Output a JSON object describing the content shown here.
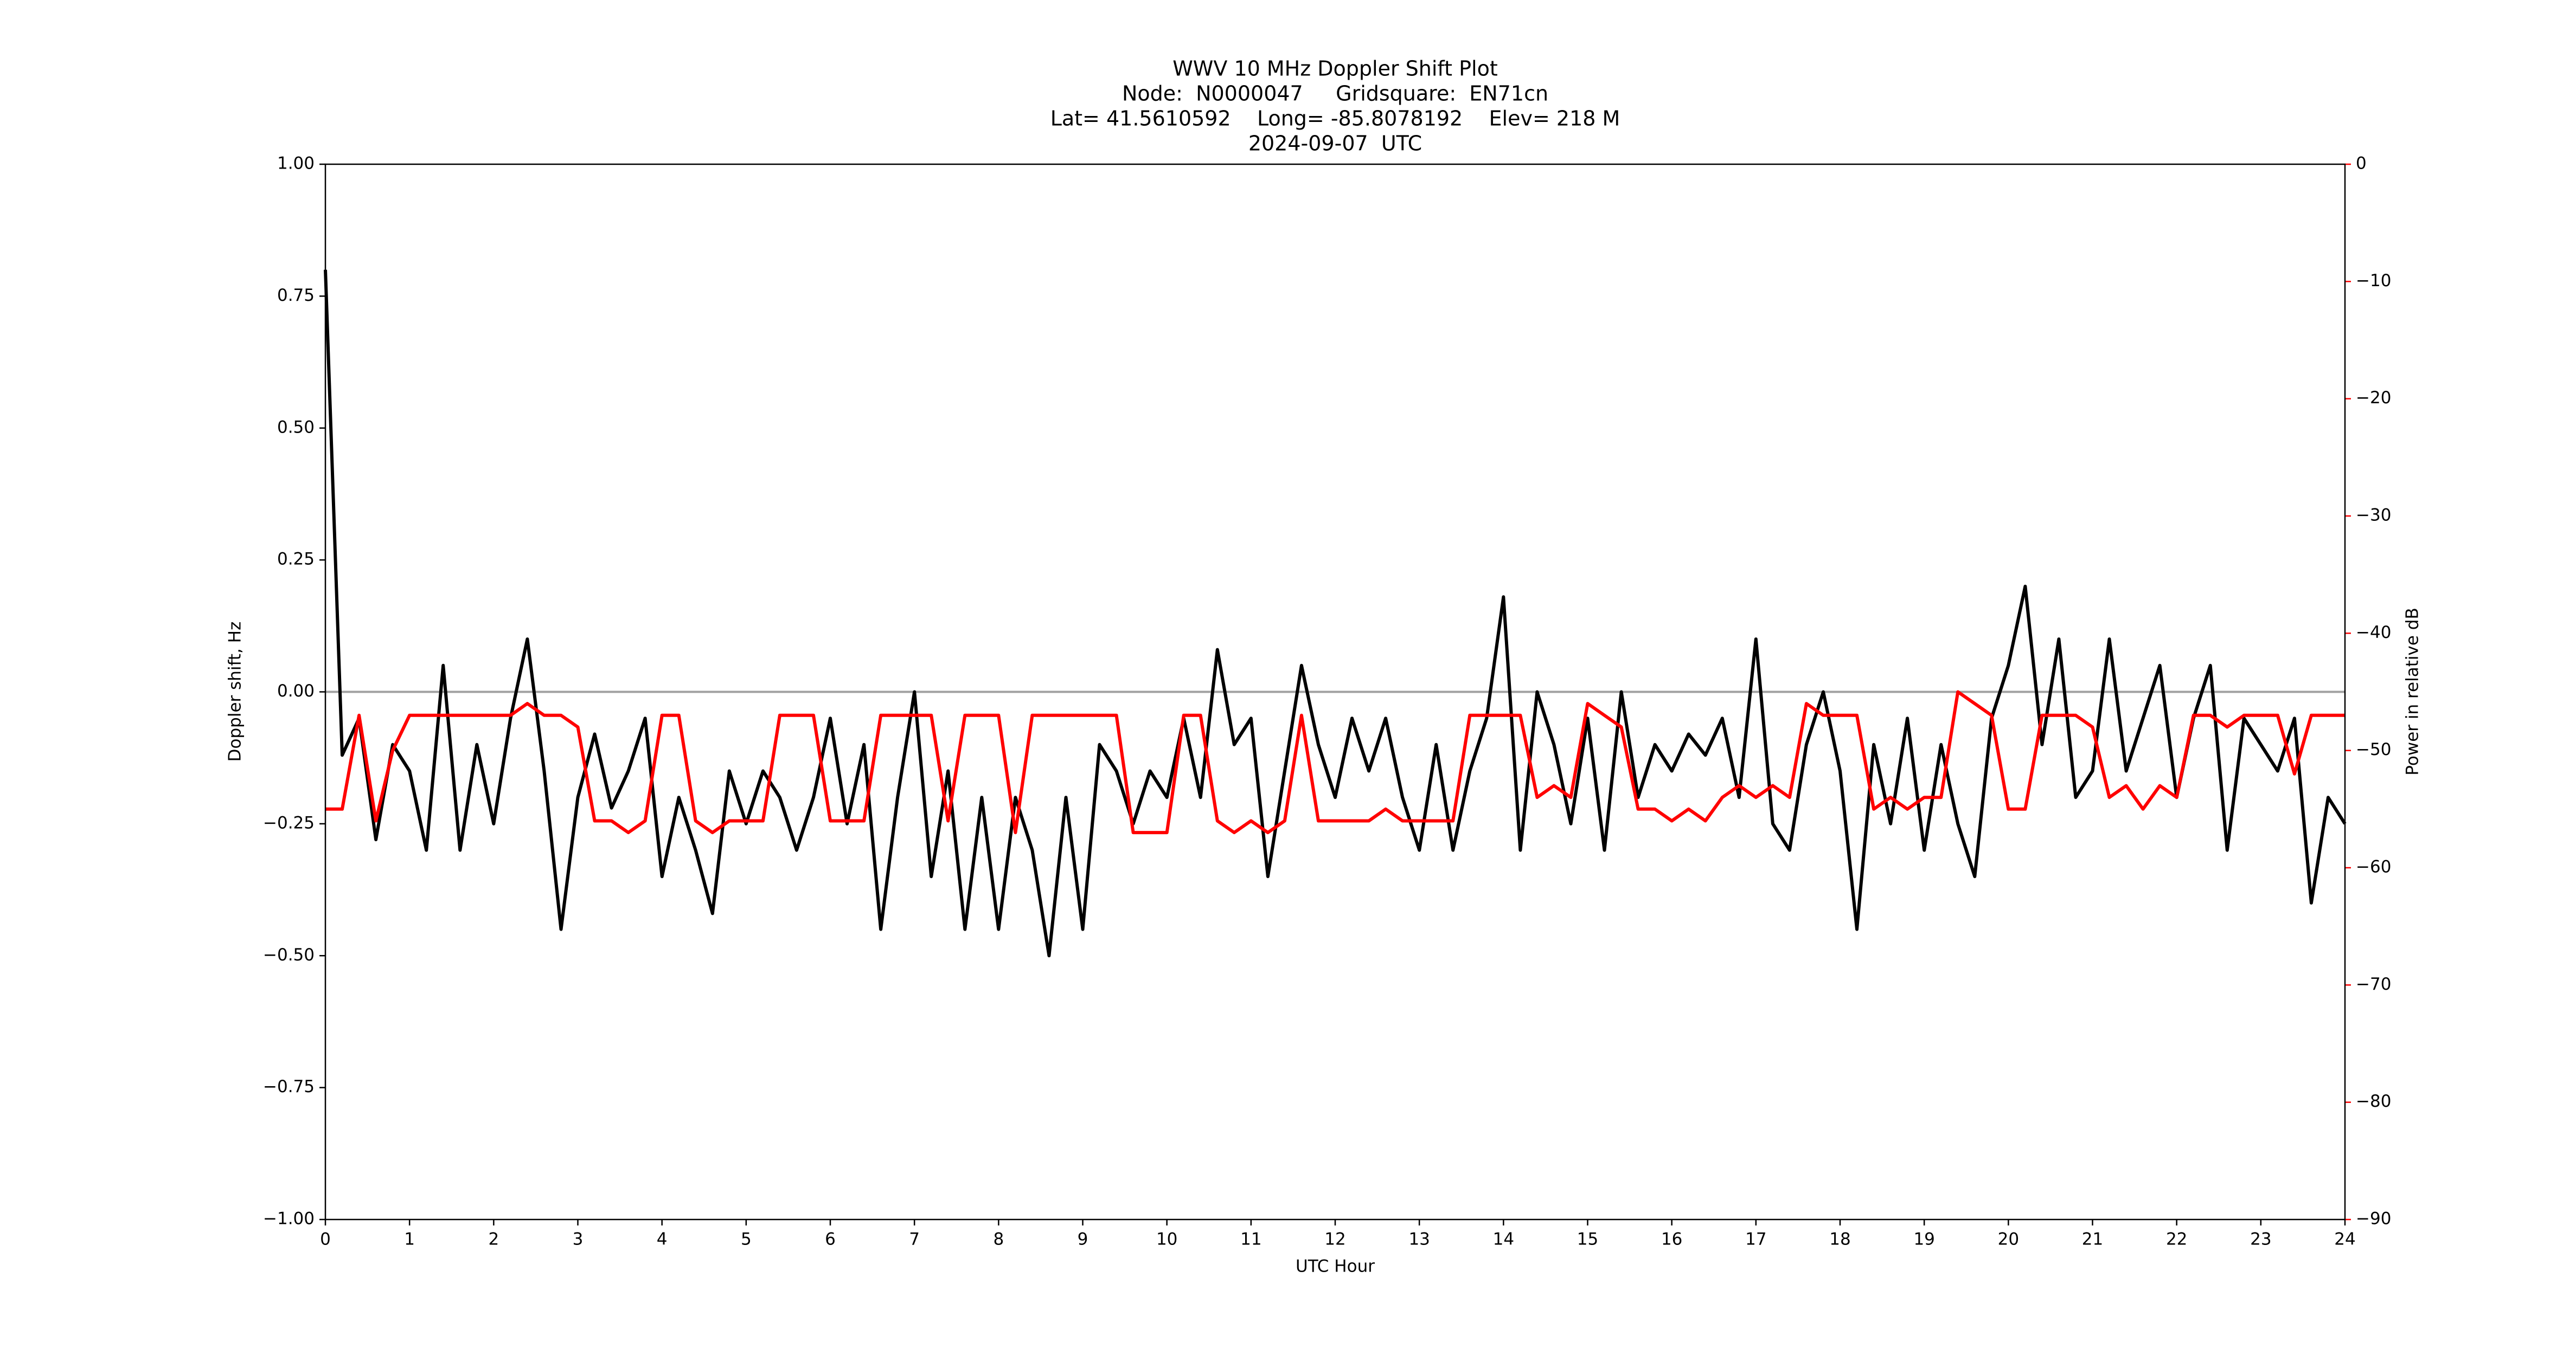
{
  "chart_data": {
    "type": "line",
    "title": "WWV 10 MHz Doppler Shift Plot",
    "subtitle": [
      "Node:  N0000047     Gridsquare:  EN71cn",
      "Lat= 41.5610592    Long= -85.8078192    Elev= 218 M",
      "2024-09-07  UTC"
    ],
    "xlabel": "UTC Hour",
    "ylabel": "Doppler shift, Hz",
    "y2label": "Power in relative dB",
    "x": [
      0,
      0.2,
      0.4,
      0.6,
      0.8,
      1.0,
      1.2,
      1.4,
      1.6,
      1.8,
      2.0,
      2.2,
      2.4,
      2.6,
      2.8,
      3.0,
      3.2,
      3.4,
      3.6,
      3.8,
      4.0,
      4.2,
      4.4,
      4.6,
      4.8,
      5.0,
      5.2,
      5.4,
      5.6,
      5.8,
      6.0,
      6.2,
      6.4,
      6.6,
      6.8,
      7.0,
      7.2,
      7.4,
      7.6,
      7.8,
      8.0,
      8.2,
      8.4,
      8.6,
      8.8,
      9.0,
      9.2,
      9.4,
      9.6,
      9.8,
      10.0,
      10.2,
      10.4,
      10.6,
      10.8,
      11.0,
      11.2,
      11.4,
      11.6,
      11.8,
      12.0,
      12.2,
      12.4,
      12.6,
      12.8,
      13.0,
      13.2,
      13.4,
      13.6,
      13.8,
      14.0,
      14.2,
      14.4,
      14.6,
      14.8,
      15.0,
      15.2,
      15.4,
      15.6,
      15.8,
      16.0,
      16.2,
      16.4,
      16.6,
      16.8,
      17.0,
      17.2,
      17.4,
      17.6,
      17.8,
      18.0,
      18.2,
      18.4,
      18.6,
      18.8,
      19.0,
      19.2,
      19.4,
      19.6,
      19.8,
      20.0,
      20.2,
      20.4,
      20.6,
      20.8,
      21.0,
      21.2,
      21.4,
      21.6,
      21.8,
      22.0,
      22.2,
      22.4,
      22.6,
      22.8,
      23.0,
      23.2,
      23.4,
      23.6,
      23.8,
      24.0
    ],
    "series": [
      {
        "name": "Doppler shift",
        "color": "#000000",
        "axis": "y",
        "values": [
          0.8,
          -0.12,
          -0.05,
          -0.28,
          -0.1,
          -0.15,
          -0.3,
          0.05,
          -0.3,
          -0.1,
          -0.25,
          -0.05,
          0.1,
          -0.15,
          -0.45,
          -0.2,
          -0.08,
          -0.22,
          -0.15,
          -0.05,
          -0.35,
          -0.2,
          -0.3,
          -0.42,
          -0.15,
          -0.25,
          -0.15,
          -0.2,
          -0.3,
          -0.2,
          -0.05,
          -0.25,
          -0.1,
          -0.45,
          -0.2,
          0.0,
          -0.35,
          -0.15,
          -0.45,
          -0.2,
          -0.45,
          -0.2,
          -0.3,
          -0.5,
          -0.2,
          -0.45,
          -0.1,
          -0.15,
          -0.25,
          -0.15,
          -0.2,
          -0.05,
          -0.2,
          0.08,
          -0.1,
          -0.05,
          -0.35,
          -0.15,
          0.05,
          -0.1,
          -0.2,
          -0.05,
          -0.15,
          -0.05,
          -0.2,
          -0.3,
          -0.1,
          -0.3,
          -0.15,
          -0.05,
          0.18,
          -0.3,
          0.0,
          -0.1,
          -0.25,
          -0.05,
          -0.3,
          0.0,
          -0.2,
          -0.1,
          -0.15,
          -0.08,
          -0.12,
          -0.05,
          -0.2,
          0.1,
          -0.25,
          -0.3,
          -0.1,
          0.0,
          -0.15,
          -0.45,
          -0.1,
          -0.25,
          -0.05,
          -0.3,
          -0.1,
          -0.25,
          -0.35,
          -0.05,
          0.05,
          0.2,
          -0.1,
          0.1,
          -0.2,
          -0.15,
          0.1,
          -0.15,
          -0.05,
          0.05,
          -0.2,
          -0.05,
          0.05,
          -0.3,
          -0.05,
          -0.1,
          -0.15,
          -0.05,
          -0.4,
          -0.2,
          -0.25
        ]
      },
      {
        "name": "Power",
        "color": "#ff0000",
        "axis": "y2",
        "values": [
          -55,
          -55,
          -47,
          -56,
          -50,
          -47,
          -47,
          -47,
          -47,
          -47,
          -47,
          -47,
          -46,
          -47,
          -47,
          -48,
          -56,
          -56,
          -57,
          -56,
          -47,
          -47,
          -56,
          -57,
          -56,
          -56,
          -56,
          -47,
          -47,
          -47,
          -56,
          -56,
          -56,
          -47,
          -47,
          -47,
          -47,
          -56,
          -47,
          -47,
          -47,
          -57,
          -47,
          -47,
          -47,
          -47,
          -47,
          -47,
          -57,
          -57,
          -57,
          -47,
          -47,
          -56,
          -57,
          -56,
          -57,
          -56,
          -47,
          -56,
          -56,
          -56,
          -56,
          -55,
          -56,
          -56,
          -56,
          -56,
          -47,
          -47,
          -47,
          -47,
          -54,
          -53,
          -54,
          -46,
          -47,
          -48,
          -55,
          -55,
          -56,
          -55,
          -56,
          -54,
          -53,
          -54,
          -53,
          -54,
          -46,
          -47,
          -47,
          -47,
          -55,
          -54,
          -55,
          -54,
          -54,
          -45,
          -46,
          -47,
          -55,
          -55,
          -47,
          -47,
          -47,
          -48,
          -54,
          -53,
          -55,
          -53,
          -54,
          -47,
          -47,
          -48,
          -47,
          -47,
          -47,
          -52,
          -47,
          -47,
          -47
        ]
      }
    ],
    "xlim": [
      0,
      24
    ],
    "xticks": [
      0,
      1,
      2,
      3,
      4,
      5,
      6,
      7,
      8,
      9,
      10,
      11,
      12,
      13,
      14,
      15,
      16,
      17,
      18,
      19,
      20,
      21,
      22,
      23,
      24
    ],
    "ylim": [
      -1,
      1
    ],
    "yticks": [
      {
        "value": -1,
        "label": "−1.00"
      },
      {
        "value": -0.75,
        "label": "−0.75"
      },
      {
        "value": -0.5,
        "label": "−0.50"
      },
      {
        "value": -0.25,
        "label": "−0.25"
      },
      {
        "value": 0,
        "label": "0.00"
      },
      {
        "value": 0.25,
        "label": "0.25"
      },
      {
        "value": 0.5,
        "label": "0.50"
      },
      {
        "value": 0.75,
        "label": "0.75"
      },
      {
        "value": 1,
        "label": "1.00"
      }
    ],
    "y2lim": [
      -90,
      0
    ],
    "y2ticks": [
      {
        "value": -90,
        "label": "−90"
      },
      {
        "value": -80,
        "label": "−80"
      },
      {
        "value": -70,
        "label": "−70"
      },
      {
        "value": -60,
        "label": "−60"
      },
      {
        "value": -50,
        "label": "−50"
      },
      {
        "value": -40,
        "label": "−40"
      },
      {
        "value": -30,
        "label": "−30"
      },
      {
        "value": -20,
        "label": "−20"
      },
      {
        "value": -10,
        "label": "−10"
      },
      0
    ],
    "hline": 0,
    "hline_color": "#a0a0a0",
    "y2color": "#ff0000"
  }
}
